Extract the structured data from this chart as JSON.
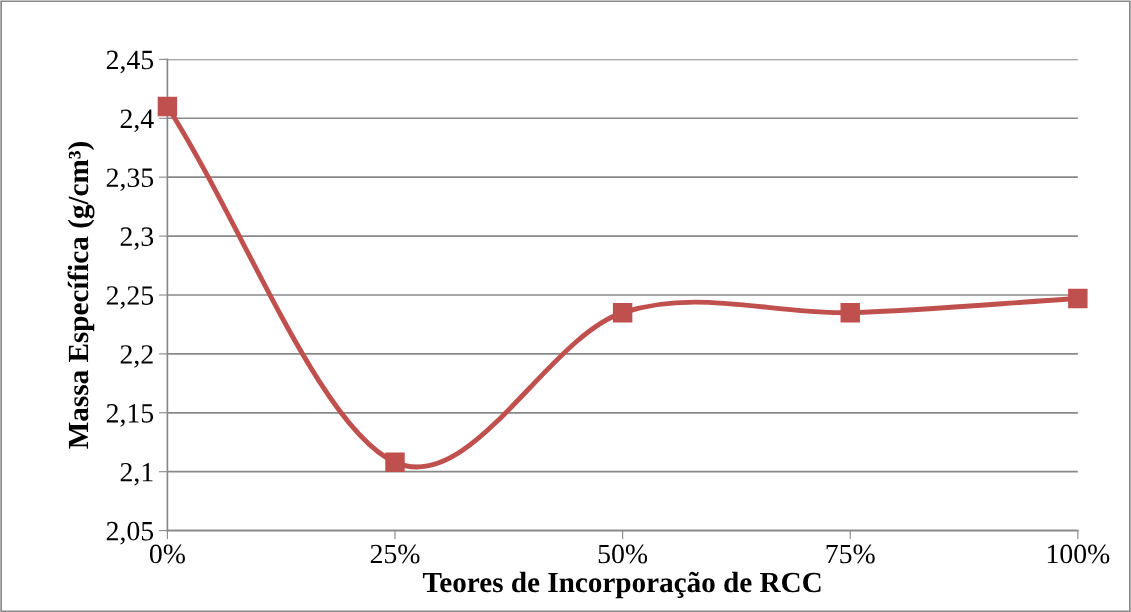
{
  "chart_data": {
    "type": "line",
    "xlabel": "Teores de Incorporação de RCC",
    "ylabel": "Massa Específica (g/cm³)",
    "categories": [
      "0%",
      "25%",
      "50%",
      "75%",
      "100%"
    ],
    "series": [
      {
        "color": "#c0504d",
        "values": [
          2.41,
          2.108,
          2.235,
          2.235,
          2.247
        ]
      }
    ],
    "ylim": [
      2.05,
      2.45
    ],
    "yticks": [
      {
        "value": 2.05,
        "label": "2,05"
      },
      {
        "value": 2.1,
        "label": "2,1"
      },
      {
        "value": 2.15,
        "label": "2,15"
      },
      {
        "value": 2.2,
        "label": "2,2"
      },
      {
        "value": 2.25,
        "label": "2,25"
      },
      {
        "value": 2.3,
        "label": "2,3"
      },
      {
        "value": 2.35,
        "label": "2,35"
      },
      {
        "value": 2.4,
        "label": "2,4"
      },
      {
        "value": 2.45,
        "label": "2,45"
      }
    ],
    "grid": "y",
    "marker": "square",
    "line_style": "solid"
  }
}
